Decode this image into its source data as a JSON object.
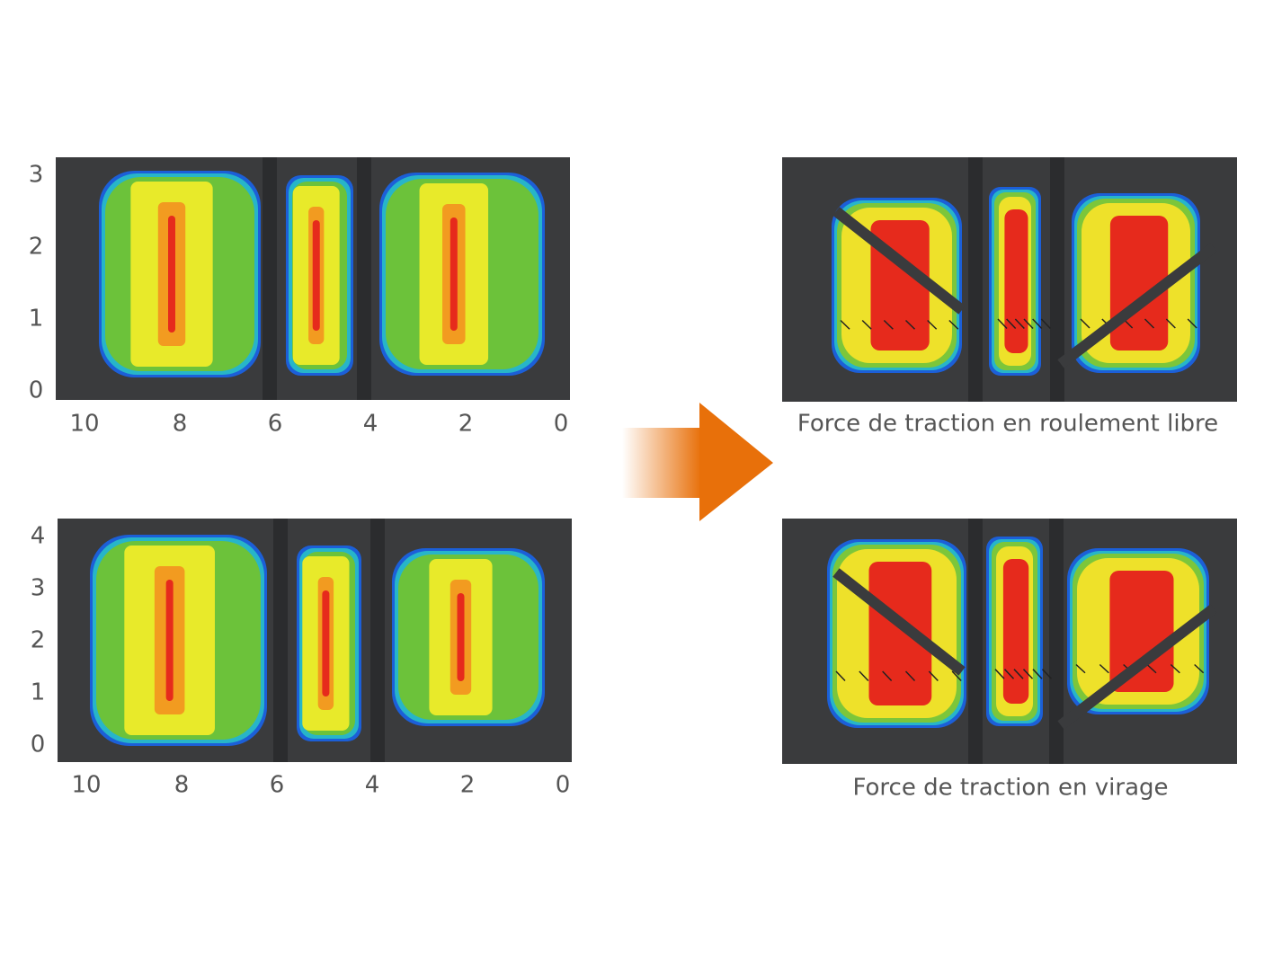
{
  "panels": [
    {
      "yticks": [
        0,
        1,
        2,
        3
      ],
      "xticks": [
        10,
        8,
        6,
        4,
        2,
        0
      ]
    },
    {
      "yticks": [
        0,
        1,
        2,
        3,
        4
      ],
      "xticks": [
        10,
        8,
        6,
        4,
        2,
        0
      ]
    }
  ],
  "captions": [
    "Force de traction en roulement libre",
    "Force de traction en virage"
  ]
}
